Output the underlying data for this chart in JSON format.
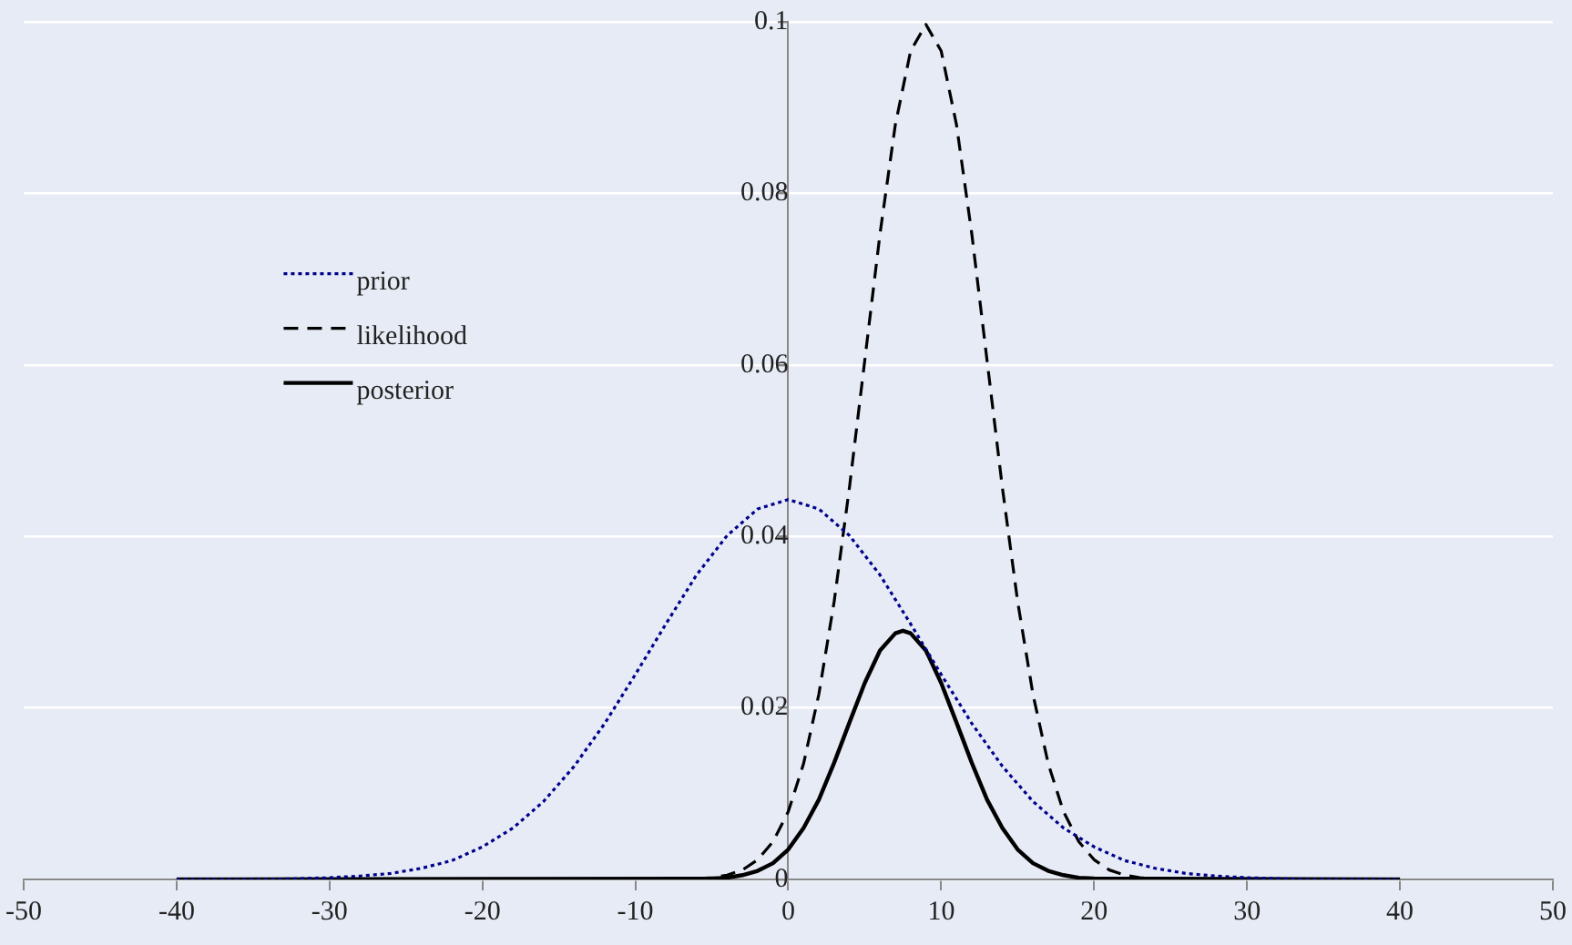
{
  "chart_data": {
    "type": "line",
    "xlim": [
      -50,
      50
    ],
    "xticks": [
      -50,
      -40,
      -30,
      -20,
      -10,
      0,
      10,
      20,
      30,
      40,
      50
    ],
    "ylim": [
      0,
      0.1
    ],
    "yticks": [
      0,
      0.02,
      0.04,
      0.06,
      0.08,
      0.1
    ],
    "grid": "y",
    "legend": "left",
    "marker": "none",
    "series": [
      {
        "name": "prior",
        "color": "#00008b",
        "line_style": "dotted",
        "x": [
          -40,
          -38,
          -36,
          -34,
          -32,
          -30,
          -28,
          -26,
          -24,
          -22,
          -20,
          -18,
          -16,
          -14,
          -12,
          -10,
          -8,
          -6,
          -4,
          -2,
          0,
          2,
          4,
          6,
          8,
          10,
          12,
          14,
          16,
          18,
          20,
          22,
          24,
          26,
          28,
          30,
          32,
          34,
          36,
          38,
          40
        ],
        "values": [
          0,
          0,
          0.0,
          0.0,
          0.0001,
          0.0002,
          0.0004,
          0.0007,
          0.0013,
          0.0022,
          0.0038,
          0.006,
          0.0091,
          0.0132,
          0.0182,
          0.0239,
          0.0298,
          0.0355,
          0.0401,
          0.0432,
          0.0443,
          0.0432,
          0.0401,
          0.0355,
          0.0298,
          0.0239,
          0.0182,
          0.0132,
          0.0091,
          0.006,
          0.0038,
          0.0022,
          0.0013,
          0.0007,
          0.0004,
          0.0002,
          0.0001,
          0.0,
          0.0,
          0,
          0
        ]
      },
      {
        "name": "likelihood",
        "color": "#000000",
        "line_style": "dashed",
        "x": [
          -40,
          -7,
          -6,
          -5,
          -4,
          -3,
          -2,
          -1,
          0,
          1,
          2,
          3,
          4,
          5,
          6,
          7,
          8,
          9,
          10,
          11,
          12,
          13,
          14,
          15,
          16,
          17,
          18,
          19,
          20,
          21,
          22,
          23,
          24,
          25,
          40
        ],
        "values": [
          0,
          0.0,
          0.0001,
          0.0002,
          0.0005,
          0.0011,
          0.0023,
          0.0044,
          0.0079,
          0.0135,
          0.0216,
          0.0324,
          0.0457,
          0.0605,
          0.0753,
          0.088,
          0.0966,
          0.0997,
          0.0966,
          0.088,
          0.0753,
          0.0605,
          0.0457,
          0.0324,
          0.0216,
          0.0135,
          0.0079,
          0.0044,
          0.0023,
          0.0011,
          0.0005,
          0.0002,
          0.0001,
          0.0,
          0
        ]
      },
      {
        "name": "posterior",
        "color": "#000000",
        "line_style": "solid",
        "x": [
          -40,
          -5,
          -4,
          -3,
          -2,
          -1,
          0,
          1,
          2,
          3,
          4,
          5,
          6,
          7,
          7.5,
          8,
          9,
          10,
          11,
          12,
          13,
          14,
          15,
          16,
          17,
          18,
          19,
          20,
          40
        ],
        "values": [
          0,
          0.0001,
          0.0002,
          0.0005,
          0.001,
          0.0019,
          0.0035,
          0.006,
          0.0093,
          0.0136,
          0.0183,
          0.0229,
          0.0267,
          0.0287,
          0.029,
          0.0287,
          0.0267,
          0.0229,
          0.0183,
          0.0136,
          0.0093,
          0.006,
          0.0035,
          0.0019,
          0.001,
          0.0005,
          0.0002,
          0.0001,
          0
        ]
      }
    ]
  }
}
